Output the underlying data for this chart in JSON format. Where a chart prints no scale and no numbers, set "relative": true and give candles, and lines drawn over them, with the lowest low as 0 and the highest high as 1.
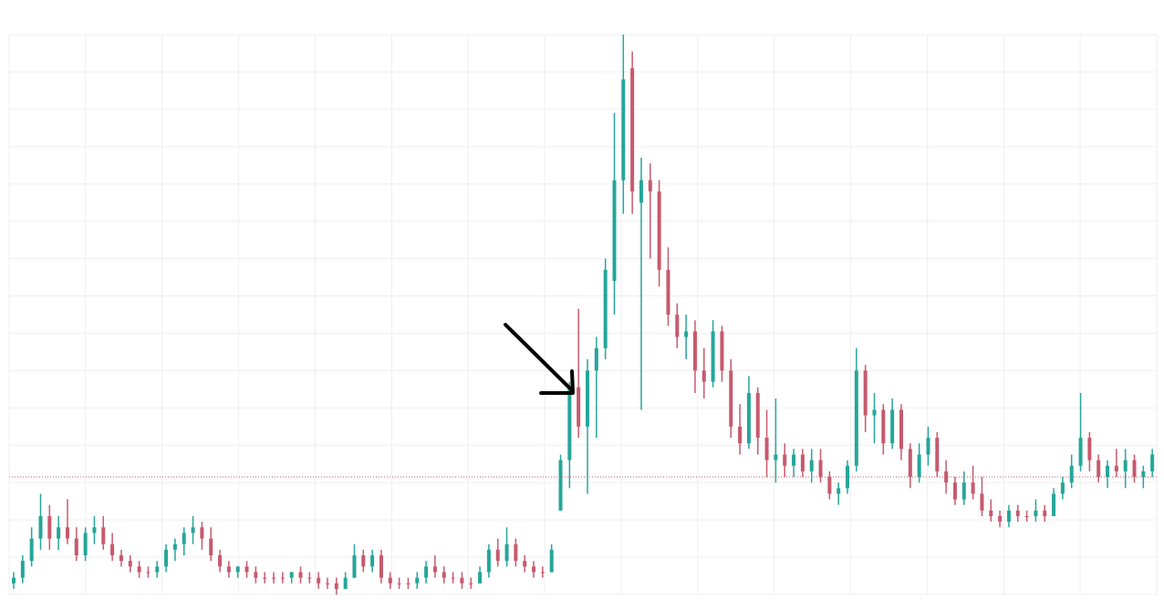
{
  "chart_data": {
    "type": "candlestick",
    "relative": true,
    "grid": true,
    "categories": [
      null,
      null,
      null,
      null,
      null,
      null,
      null,
      null,
      null,
      null,
      null,
      null,
      null,
      null,
      null,
      null,
      null,
      null,
      null,
      null,
      null,
      null,
      null,
      null,
      null,
      null,
      null,
      null,
      null,
      null,
      null,
      null,
      null,
      null,
      null,
      null,
      null,
      null,
      null,
      null,
      null,
      null,
      null,
      null,
      null,
      null,
      null,
      null,
      null,
      null,
      null,
      null,
      null,
      null,
      null,
      null,
      null,
      null,
      null,
      null,
      null,
      null,
      null,
      null,
      null,
      null,
      null,
      null,
      null,
      null,
      null,
      null,
      null,
      null,
      null,
      null,
      null,
      null,
      null,
      null,
      null,
      null,
      null,
      null,
      null,
      null,
      null,
      null,
      null,
      null,
      null,
      null,
      null,
      null,
      null,
      null,
      null,
      null,
      null,
      null,
      null,
      null,
      null,
      null,
      null,
      null,
      null,
      null,
      null,
      null,
      null,
      null,
      null,
      null,
      null,
      null,
      null,
      null,
      null,
      null,
      null,
      null,
      null,
      null,
      null,
      null,
      null,
      null
    ],
    "ohlc": [
      [
        0.02,
        0.04,
        0.01,
        0.03
      ],
      [
        0.03,
        0.07,
        0.02,
        0.06
      ],
      [
        0.06,
        0.12,
        0.05,
        0.1
      ],
      [
        0.1,
        0.18,
        0.08,
        0.14
      ],
      [
        0.14,
        0.16,
        0.08,
        0.1
      ],
      [
        0.1,
        0.14,
        0.08,
        0.12
      ],
      [
        0.12,
        0.17,
        0.09,
        0.1
      ],
      [
        0.1,
        0.12,
        0.06,
        0.07
      ],
      [
        0.07,
        0.12,
        0.06,
        0.11
      ],
      [
        0.11,
        0.14,
        0.09,
        0.12
      ],
      [
        0.12,
        0.14,
        0.08,
        0.09
      ],
      [
        0.09,
        0.11,
        0.06,
        0.07
      ],
      [
        0.07,
        0.08,
        0.05,
        0.06
      ],
      [
        0.06,
        0.07,
        0.04,
        0.05
      ],
      [
        0.05,
        0.06,
        0.03,
        0.04
      ],
      [
        0.04,
        0.05,
        0.03,
        0.04
      ],
      [
        0.04,
        0.06,
        0.03,
        0.05
      ],
      [
        0.05,
        0.09,
        0.04,
        0.08
      ],
      [
        0.08,
        0.1,
        0.06,
        0.09
      ],
      [
        0.09,
        0.12,
        0.07,
        0.11
      ],
      [
        0.11,
        0.14,
        0.09,
        0.12
      ],
      [
        0.12,
        0.13,
        0.08,
        0.1
      ],
      [
        0.1,
        0.12,
        0.06,
        0.07
      ],
      [
        0.07,
        0.08,
        0.04,
        0.05
      ],
      [
        0.05,
        0.06,
        0.03,
        0.04
      ],
      [
        0.04,
        0.05,
        0.03,
        0.05
      ],
      [
        0.05,
        0.06,
        0.03,
        0.04
      ],
      [
        0.04,
        0.05,
        0.02,
        0.03
      ],
      [
        0.03,
        0.04,
        0.02,
        0.03
      ],
      [
        0.03,
        0.04,
        0.02,
        0.03
      ],
      [
        0.03,
        0.04,
        0.02,
        0.03
      ],
      [
        0.03,
        0.04,
        0.02,
        0.04
      ],
      [
        0.04,
        0.05,
        0.02,
        0.03
      ],
      [
        0.03,
        0.04,
        0.02,
        0.03
      ],
      [
        0.03,
        0.04,
        0.01,
        0.02
      ],
      [
        0.02,
        0.03,
        0.01,
        0.02
      ],
      [
        0.02,
        0.03,
        0.0,
        0.01
      ],
      [
        0.01,
        0.04,
        0.01,
        0.03
      ],
      [
        0.03,
        0.09,
        0.03,
        0.07
      ],
      [
        0.07,
        0.08,
        0.04,
        0.05
      ],
      [
        0.05,
        0.08,
        0.04,
        0.07
      ],
      [
        0.07,
        0.08,
        0.02,
        0.03
      ],
      [
        0.03,
        0.04,
        0.01,
        0.02
      ],
      [
        0.02,
        0.03,
        0.01,
        0.02
      ],
      [
        0.02,
        0.03,
        0.01,
        0.02
      ],
      [
        0.02,
        0.04,
        0.01,
        0.03
      ],
      [
        0.03,
        0.06,
        0.02,
        0.05
      ],
      [
        0.05,
        0.07,
        0.03,
        0.04
      ],
      [
        0.04,
        0.05,
        0.02,
        0.03
      ],
      [
        0.03,
        0.04,
        0.02,
        0.03
      ],
      [
        0.03,
        0.04,
        0.01,
        0.02
      ],
      [
        0.02,
        0.03,
        0.01,
        0.02
      ],
      [
        0.02,
        0.05,
        0.02,
        0.04
      ],
      [
        0.04,
        0.09,
        0.03,
        0.08
      ],
      [
        0.08,
        0.1,
        0.05,
        0.06
      ],
      [
        0.06,
        0.12,
        0.05,
        0.09
      ],
      [
        0.09,
        0.1,
        0.05,
        0.06
      ],
      [
        0.06,
        0.07,
        0.04,
        0.05
      ],
      [
        0.05,
        0.06,
        0.03,
        0.04
      ],
      [
        0.04,
        0.05,
        0.03,
        0.04
      ],
      [
        0.04,
        0.09,
        0.04,
        0.08
      ],
      [
        0.15,
        0.25,
        0.15,
        0.24
      ],
      [
        0.24,
        0.38,
        0.19,
        0.37
      ],
      [
        0.37,
        0.51,
        0.28,
        0.3
      ],
      [
        0.3,
        0.42,
        0.18,
        0.4
      ],
      [
        0.4,
        0.46,
        0.28,
        0.44
      ],
      [
        0.44,
        0.6,
        0.42,
        0.58
      ],
      [
        0.56,
        0.86,
        0.5,
        0.74
      ],
      [
        0.74,
        1.0,
        0.68,
        0.92
      ],
      [
        0.94,
        0.97,
        0.68,
        0.72
      ],
      [
        0.7,
        0.78,
        0.33,
        0.74
      ],
      [
        0.74,
        0.77,
        0.6,
        0.72
      ],
      [
        0.72,
        0.74,
        0.55,
        0.58
      ],
      [
        0.58,
        0.62,
        0.48,
        0.5
      ],
      [
        0.5,
        0.52,
        0.44,
        0.46
      ],
      [
        0.46,
        0.5,
        0.42,
        0.47
      ],
      [
        0.47,
        0.49,
        0.36,
        0.4
      ],
      [
        0.4,
        0.44,
        0.35,
        0.38
      ],
      [
        0.38,
        0.49,
        0.37,
        0.47
      ],
      [
        0.47,
        0.48,
        0.38,
        0.4
      ],
      [
        0.4,
        0.42,
        0.28,
        0.3
      ],
      [
        0.3,
        0.34,
        0.25,
        0.27
      ],
      [
        0.27,
        0.39,
        0.26,
        0.36
      ],
      [
        0.36,
        0.37,
        0.25,
        0.28
      ],
      [
        0.28,
        0.33,
        0.21,
        0.24
      ],
      [
        0.24,
        0.35,
        0.2,
        0.25
      ],
      [
        0.25,
        0.27,
        0.21,
        0.23
      ],
      [
        0.23,
        0.26,
        0.21,
        0.25
      ],
      [
        0.25,
        0.26,
        0.21,
        0.22
      ],
      [
        0.22,
        0.26,
        0.2,
        0.24
      ],
      [
        0.24,
        0.26,
        0.2,
        0.21
      ],
      [
        0.21,
        0.22,
        0.17,
        0.18
      ],
      [
        0.18,
        0.2,
        0.16,
        0.19
      ],
      [
        0.19,
        0.24,
        0.18,
        0.23
      ],
      [
        0.23,
        0.44,
        0.22,
        0.4
      ],
      [
        0.4,
        0.41,
        0.29,
        0.32
      ],
      [
        0.32,
        0.36,
        0.27,
        0.33
      ],
      [
        0.33,
        0.34,
        0.25,
        0.27
      ],
      [
        0.27,
        0.35,
        0.26,
        0.33
      ],
      [
        0.33,
        0.34,
        0.24,
        0.26
      ],
      [
        0.26,
        0.27,
        0.19,
        0.21
      ],
      [
        0.21,
        0.27,
        0.2,
        0.25
      ],
      [
        0.25,
        0.3,
        0.23,
        0.28
      ],
      [
        0.28,
        0.29,
        0.21,
        0.22
      ],
      [
        0.22,
        0.24,
        0.18,
        0.2
      ],
      [
        0.2,
        0.21,
        0.16,
        0.17
      ],
      [
        0.17,
        0.22,
        0.16,
        0.2
      ],
      [
        0.2,
        0.23,
        0.17,
        0.18
      ],
      [
        0.18,
        0.21,
        0.14,
        0.15
      ],
      [
        0.15,
        0.17,
        0.13,
        0.14
      ],
      [
        0.14,
        0.15,
        0.12,
        0.13
      ],
      [
        0.13,
        0.16,
        0.12,
        0.15
      ],
      [
        0.15,
        0.16,
        0.13,
        0.14
      ],
      [
        0.14,
        0.15,
        0.13,
        0.14
      ],
      [
        0.14,
        0.17,
        0.13,
        0.15
      ],
      [
        0.15,
        0.16,
        0.13,
        0.14
      ],
      [
        0.14,
        0.19,
        0.14,
        0.18
      ],
      [
        0.18,
        0.21,
        0.17,
        0.2
      ],
      [
        0.2,
        0.25,
        0.19,
        0.23
      ],
      [
        0.23,
        0.36,
        0.22,
        0.28
      ],
      [
        0.28,
        0.29,
        0.22,
        0.24
      ],
      [
        0.24,
        0.25,
        0.2,
        0.21
      ],
      [
        0.21,
        0.24,
        0.19,
        0.23
      ],
      [
        0.23,
        0.26,
        0.21,
        0.22
      ],
      [
        0.22,
        0.26,
        0.19,
        0.24
      ],
      [
        0.24,
        0.25,
        0.2,
        0.21
      ],
      [
        0.21,
        0.23,
        0.19,
        0.22
      ],
      [
        0.22,
        0.26,
        0.21,
        0.25
      ]
    ],
    "colors": [
      "#26a69a",
      "#26a69a",
      "#26a69a",
      "#26a69a",
      "#c75a6e",
      "#26a69a",
      "#c75a6e",
      "#c75a6e",
      "#26a69a",
      "#26a69a",
      "#c75a6e",
      "#c75a6e",
      "#c75a6e",
      "#c75a6e",
      "#c75a6e",
      "#c75a6e",
      "#26a69a",
      "#26a69a",
      "#26a69a",
      "#26a69a",
      "#26a69a",
      "#c75a6e",
      "#c75a6e",
      "#c75a6e",
      "#c75a6e",
      "#26a69a",
      "#c75a6e",
      "#c75a6e",
      "#c75a6e",
      "#c75a6e",
      "#c75a6e",
      "#26a69a",
      "#c75a6e",
      "#c75a6e",
      "#c75a6e",
      "#c75a6e",
      "#c75a6e",
      "#26a69a",
      "#26a69a",
      "#c75a6e",
      "#26a69a",
      "#c75a6e",
      "#c75a6e",
      "#c75a6e",
      "#c75a6e",
      "#26a69a",
      "#26a69a",
      "#c75a6e",
      "#c75a6e",
      "#c75a6e",
      "#c75a6e",
      "#c75a6e",
      "#26a69a",
      "#26a69a",
      "#c75a6e",
      "#26a69a",
      "#c75a6e",
      "#c75a6e",
      "#c75a6e",
      "#c75a6e",
      "#26a69a",
      "#26a69a",
      "#26a69a",
      "#c75a6e",
      "#26a69a",
      "#26a69a",
      "#26a69a",
      "#26a69a",
      "#26a69a",
      "#c75a6e",
      "#26a69a",
      "#c75a6e",
      "#c75a6e",
      "#c75a6e",
      "#c75a6e",
      "#26a69a",
      "#c75a6e",
      "#c75a6e",
      "#26a69a",
      "#c75a6e",
      "#c75a6e",
      "#c75a6e",
      "#26a69a",
      "#c75a6e",
      "#c75a6e",
      "#26a69a",
      "#c75a6e",
      "#26a69a",
      "#c75a6e",
      "#26a69a",
      "#c75a6e",
      "#c75a6e",
      "#26a69a",
      "#26a69a",
      "#26a69a",
      "#c75a6e",
      "#26a69a",
      "#c75a6e",
      "#26a69a",
      "#c75a6e",
      "#c75a6e",
      "#26a69a",
      "#26a69a",
      "#c75a6e",
      "#c75a6e",
      "#c75a6e",
      "#26a69a",
      "#c75a6e",
      "#c75a6e",
      "#c75a6e",
      "#c75a6e",
      "#26a69a",
      "#c75a6e",
      "#c75a6e",
      "#26a69a",
      "#c75a6e",
      "#26a69a",
      "#26a69a",
      "#26a69a",
      "#26a69a",
      "#c75a6e",
      "#c75a6e",
      "#26a69a",
      "#c75a6e",
      "#26a69a",
      "#c75a6e",
      "#26a69a",
      "#26a69a"
    ],
    "ref_lines": [
      {
        "axis": "y",
        "value": 0.21,
        "color": "#c75a6e",
        "line_style": "dotted"
      }
    ]
  }
}
